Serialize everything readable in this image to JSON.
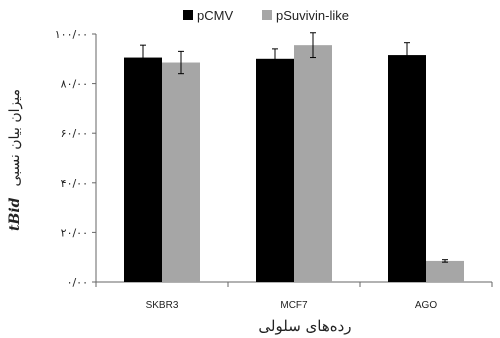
{
  "chart_data": {
    "type": "bar",
    "categories": [
      "SKBR3",
      "MCF7",
      "AGO"
    ],
    "series": [
      {
        "name": "pCMV",
        "values": [
          90.5,
          90.0,
          91.5
        ],
        "errors": [
          5.0,
          4.0,
          5.0
        ],
        "color": "#000000"
      },
      {
        "name": "pSuvivin-like",
        "values": [
          88.5,
          95.5,
          8.5
        ],
        "errors": [
          4.5,
          5.0,
          0.5
        ],
        "color": "#a6a6a6"
      }
    ],
    "yticks": [
      "۰/۰۰",
      "۲۰/۰۰",
      "۴۰/۰۰",
      "۶۰/۰۰",
      "۸۰/۰۰",
      "۱۰۰/۰۰"
    ],
    "ylim": [
      0,
      100
    ],
    "xlabel": "رده‌های سلولی",
    "ylabel_italic": "tBid",
    "ylabel": "میزان بیان نسبی",
    "legend_position": "top",
    "grid": false
  }
}
